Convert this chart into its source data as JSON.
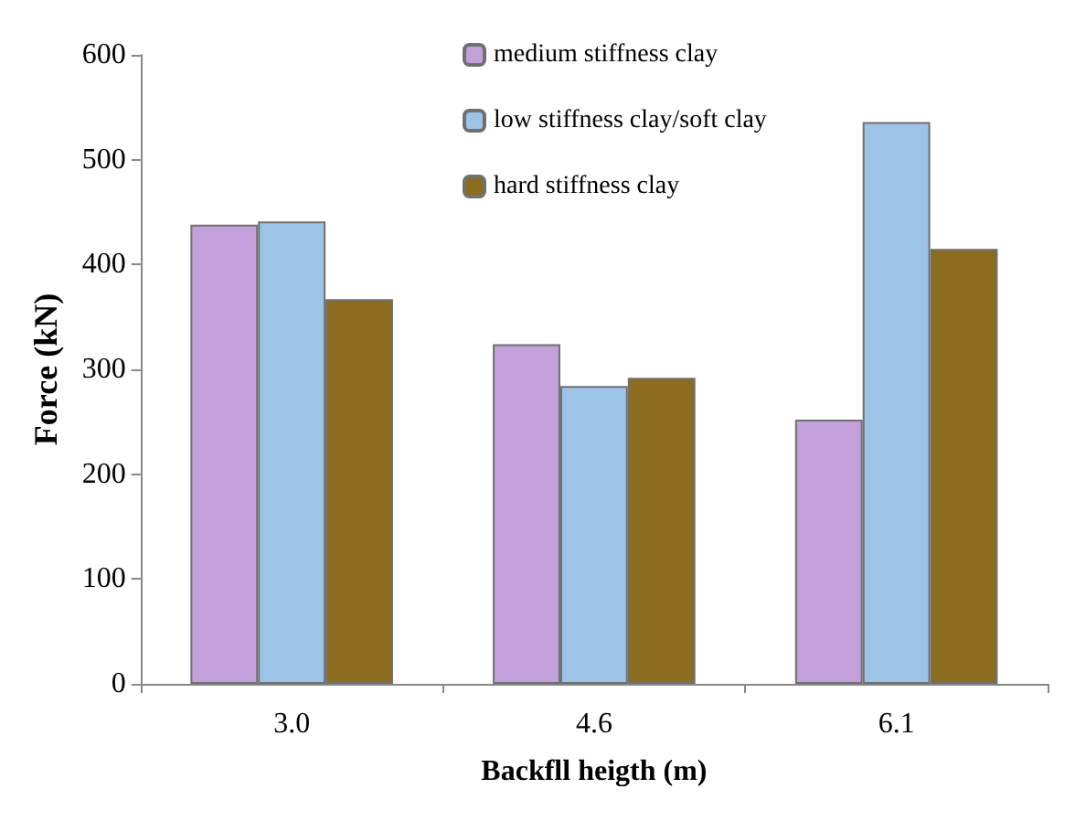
{
  "chart_data": {
    "type": "bar",
    "xlabel": "Backfll heigth (m)",
    "ylabel": "Force (kN)",
    "categories": [
      "3.0",
      "4.6",
      "6.1"
    ],
    "series": [
      {
        "name": "medium stiffness clay",
        "color": "#c39fdc",
        "values": [
          438,
          324,
          252
        ]
      },
      {
        "name": "low stiffness clay/soft clay",
        "color": "#9dc3e6",
        "values": [
          441,
          284,
          536
        ]
      },
      {
        "name": "hard stiffness clay",
        "color": "#8c6d1f",
        "values": [
          367,
          292,
          415
        ]
      }
    ],
    "ylim": [
      0,
      600
    ],
    "yticks": [
      0,
      100,
      200,
      300,
      400,
      500,
      600
    ],
    "grid": false,
    "legend": "top right"
  }
}
